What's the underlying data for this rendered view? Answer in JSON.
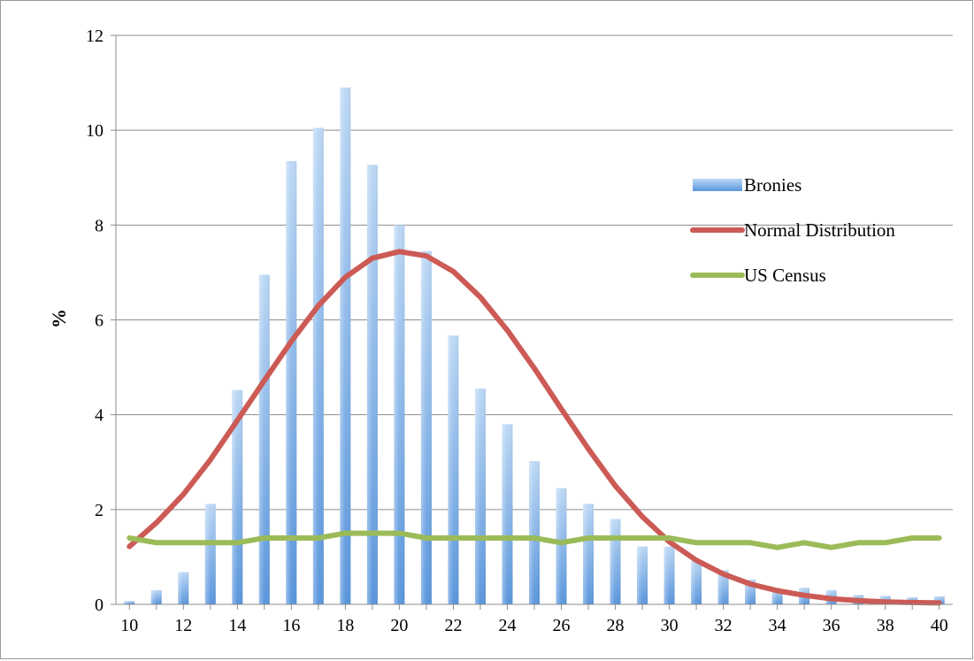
{
  "chart_data": {
    "type": "bar",
    "title": "",
    "xlabel": "",
    "ylabel": "%",
    "ylim": [
      0,
      12
    ],
    "y_ticks": [
      "0",
      "2",
      "4",
      "6",
      "8",
      "10",
      "12"
    ],
    "x_ticks": [
      "10",
      "12",
      "14",
      "16",
      "18",
      "20",
      "22",
      "24",
      "26",
      "28",
      "30",
      "32",
      "34",
      "36",
      "38",
      "40"
    ],
    "x": [
      10,
      11,
      12,
      13,
      14,
      15,
      16,
      17,
      18,
      19,
      20,
      21,
      22,
      23,
      24,
      25,
      26,
      27,
      28,
      29,
      30,
      31,
      32,
      33,
      34,
      35,
      36,
      37,
      38,
      39,
      40
    ],
    "grid": "horizontal",
    "legend_position": "right",
    "series": [
      {
        "name": "Bronies",
        "type": "bar",
        "color": "#7fb3ea",
        "values": [
          0.07,
          0.3,
          0.68,
          2.12,
          4.52,
          6.95,
          9.35,
          10.05,
          10.9,
          9.27,
          8.0,
          7.45,
          5.67,
          4.55,
          3.8,
          3.02,
          2.45,
          2.12,
          1.8,
          1.22,
          1.22,
          0.92,
          0.72,
          0.52,
          0.32,
          0.35,
          0.3,
          0.2,
          0.18,
          0.15,
          0.17
        ]
      },
      {
        "name": "Normal Distribution",
        "type": "line",
        "color": "#cc5a55",
        "values": [
          1.22,
          1.72,
          2.32,
          3.05,
          3.88,
          4.72,
          5.55,
          6.3,
          6.9,
          7.3,
          7.44,
          7.35,
          7.02,
          6.48,
          5.78,
          4.98,
          4.12,
          3.28,
          2.5,
          1.85,
          1.32,
          0.93,
          0.64,
          0.43,
          0.29,
          0.19,
          0.12,
          0.08,
          0.05,
          0.04,
          0.03
        ]
      },
      {
        "name": "US Census",
        "type": "line",
        "color": "#9bbb59",
        "values": [
          1.4,
          1.3,
          1.3,
          1.3,
          1.3,
          1.4,
          1.4,
          1.4,
          1.5,
          1.5,
          1.5,
          1.4,
          1.4,
          1.4,
          1.4,
          1.4,
          1.3,
          1.4,
          1.4,
          1.4,
          1.4,
          1.3,
          1.3,
          1.3,
          1.2,
          1.3,
          1.2,
          1.3,
          1.3,
          1.4,
          1.4
        ]
      }
    ]
  }
}
